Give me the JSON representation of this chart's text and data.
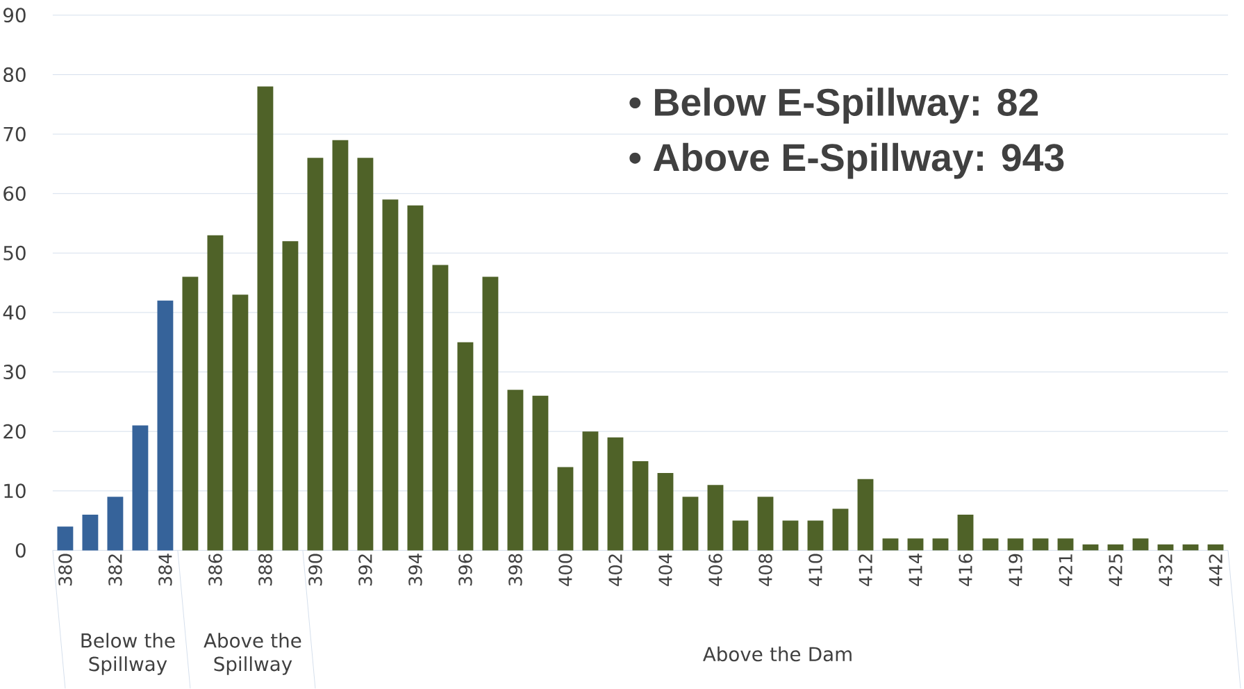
{
  "chart_data": {
    "type": "bar",
    "categories": [
      "380",
      null,
      "382",
      null,
      "384",
      null,
      "386",
      null,
      "388",
      null,
      "390",
      null,
      "392",
      null,
      "394",
      null,
      "396",
      null,
      "398",
      null,
      "400",
      null,
      "402",
      null,
      "404",
      null,
      "406",
      null,
      "408",
      null,
      "410",
      null,
      "412",
      null,
      "414",
      null,
      "416",
      null,
      "419",
      null,
      "421",
      null,
      "425",
      null,
      "432",
      null,
      "442"
    ],
    "values": [
      4,
      6,
      9,
      21,
      42,
      46,
      53,
      43,
      78,
      52,
      66,
      69,
      66,
      59,
      58,
      48,
      35,
      46,
      27,
      26,
      14,
      20,
      19,
      15,
      13,
      9,
      11,
      5,
      9,
      5,
      5,
      7,
      12,
      2,
      2,
      2,
      6,
      2,
      2,
      2,
      2,
      1,
      1,
      2,
      1,
      1,
      1
    ],
    "colors": [
      "#36639a",
      "#36639a",
      "#36639a",
      "#36639a",
      "#36639a",
      "#4f6228",
      "#4f6228",
      "#4f6228",
      "#4f6228",
      "#4f6228",
      "#4f6228",
      "#4f6228",
      "#4f6228",
      "#4f6228",
      "#4f6228",
      "#4f6228",
      "#4f6228",
      "#4f6228",
      "#4f6228",
      "#4f6228",
      "#4f6228",
      "#4f6228",
      "#4f6228",
      "#4f6228",
      "#4f6228",
      "#4f6228",
      "#4f6228",
      "#4f6228",
      "#4f6228",
      "#4f6228",
      "#4f6228",
      "#4f6228",
      "#4f6228",
      "#4f6228",
      "#4f6228",
      "#4f6228",
      "#4f6228",
      "#4f6228",
      "#4f6228",
      "#4f6228",
      "#4f6228",
      "#4f6228",
      "#4f6228",
      "#4f6228",
      "#4f6228",
      "#4f6228",
      "#4f6228"
    ],
    "ylim": [
      0,
      90
    ],
    "yticks": [
      0,
      10,
      20,
      30,
      40,
      50,
      60,
      70,
      80,
      90
    ],
    "grid": "y",
    "annotations": [
      "Below the Spillway",
      "Above the Spillway",
      "Above the Dam",
      "•   Below E-Spillway: 82",
      "•   Above E-Spillway: 943"
    ]
  }
}
